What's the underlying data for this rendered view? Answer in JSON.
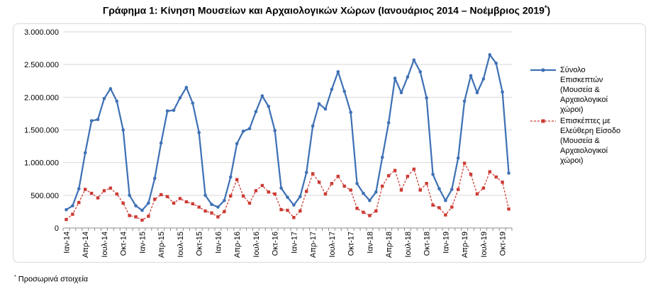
{
  "title": "Γράφημα 1: Κίνηση Μουσείων και Αρχαιολογικών Χώρων (Ιανουάριος 2014 – Νοέμβριος 2019",
  "title_mark": "*",
  "title_close": ")",
  "footnote_mark": "*",
  "footnote": " Προσωρινά στοιχεία",
  "colors": {
    "series1": "#3f71b5",
    "series2": "#cc3a33",
    "grid": "#d9d9d9"
  },
  "chart_data": {
    "type": "line",
    "ylim": [
      0,
      3000000
    ],
    "y_ticks": [
      "0",
      "500.000",
      "1.000.000",
      "1.500.000",
      "2.000.000",
      "2.500.000",
      "3.000.000"
    ],
    "y_tick_values": [
      0,
      500000,
      1000000,
      1500000,
      2000000,
      2500000,
      3000000
    ],
    "x_tick_labels": [
      {
        "index": 0,
        "label": "Ιαν-14"
      },
      {
        "index": 3,
        "label": "Απρ-14"
      },
      {
        "index": 6,
        "label": "Ιουλ-14"
      },
      {
        "index": 9,
        "label": "Οκτ-14"
      },
      {
        "index": 12,
        "label": "Ιαν-15"
      },
      {
        "index": 15,
        "label": "Απρ-15"
      },
      {
        "index": 18,
        "label": "Ιουλ-15"
      },
      {
        "index": 21,
        "label": "Οκτ-15"
      },
      {
        "index": 24,
        "label": "Ιαν-16"
      },
      {
        "index": 27,
        "label": "Απρ-16"
      },
      {
        "index": 30,
        "label": "Ιουλ-16"
      },
      {
        "index": 33,
        "label": "Οκτ-16"
      },
      {
        "index": 36,
        "label": "Ιαν-17"
      },
      {
        "index": 39,
        "label": "Απρ-17"
      },
      {
        "index": 42,
        "label": "Ιουλ-17"
      },
      {
        "index": 45,
        "label": "Οκτ-17"
      },
      {
        "index": 48,
        "label": "Ιαν-18"
      },
      {
        "index": 51,
        "label": "Απρ-18"
      },
      {
        "index": 54,
        "label": "Ιουλ-18"
      },
      {
        "index": 57,
        "label": "Οκτ-18"
      },
      {
        "index": 60,
        "label": "Ιαν-19"
      },
      {
        "index": 63,
        "label": "Απρ-19"
      },
      {
        "index": 66,
        "label": "Ιουλ-19"
      },
      {
        "index": 69,
        "label": "Οκτ-19"
      }
    ],
    "x_start": "2014-01",
    "x_end": "2019-11",
    "grid": true,
    "legend_position": "right",
    "series": [
      {
        "name": "Σύνολο Επισκεπτών (Μουσεία & Αρχαιολογικοί χώροι)",
        "style": "solid",
        "values": [
          280000,
          340000,
          600000,
          1150000,
          1640000,
          1660000,
          1980000,
          2130000,
          1940000,
          1500000,
          500000,
          340000,
          270000,
          380000,
          760000,
          1300000,
          1790000,
          1800000,
          1990000,
          2150000,
          1910000,
          1460000,
          500000,
          360000,
          320000,
          420000,
          780000,
          1290000,
          1480000,
          1520000,
          1780000,
          2020000,
          1860000,
          1490000,
          610000,
          470000,
          350000,
          480000,
          850000,
          1560000,
          1900000,
          1820000,
          2120000,
          2390000,
          2090000,
          1770000,
          680000,
          530000,
          420000,
          550000,
          1080000,
          1610000,
          2290000,
          2070000,
          2310000,
          2570000,
          2390000,
          1990000,
          820000,
          600000,
          420000,
          590000,
          1070000,
          1940000,
          2330000,
          2070000,
          2280000,
          2650000,
          2520000,
          2080000,
          840000
        ]
      },
      {
        "name": "Επισκέπτες με Ελεύθερη Είσοδο (Μουσεία & Αρχαιολογικοί χώροι)",
        "style": "dashed",
        "values": [
          130000,
          210000,
          390000,
          590000,
          530000,
          460000,
          570000,
          610000,
          520000,
          380000,
          190000,
          170000,
          120000,
          180000,
          440000,
          510000,
          480000,
          380000,
          450000,
          400000,
          370000,
          320000,
          260000,
          230000,
          170000,
          250000,
          490000,
          740000,
          490000,
          380000,
          570000,
          650000,
          550000,
          520000,
          280000,
          270000,
          160000,
          260000,
          560000,
          830000,
          700000,
          520000,
          680000,
          790000,
          640000,
          580000,
          300000,
          240000,
          190000,
          260000,
          640000,
          800000,
          880000,
          580000,
          790000,
          900000,
          580000,
          680000,
          350000,
          310000,
          200000,
          320000,
          590000,
          990000,
          820000,
          520000,
          610000,
          860000,
          780000,
          700000,
          290000
        ]
      }
    ]
  },
  "legend": [
    {
      "label": "Σύνολο\nΕπισκεπτών\n(Μουσεία &\nΑρχαιολογικοί\nχώροι)"
    },
    {
      "label": "Επισκέπτες με\nΕλεύθερη Είσοδο\n(Μουσεία &\nΑρχαιολογικοί\nχώροι)"
    }
  ]
}
